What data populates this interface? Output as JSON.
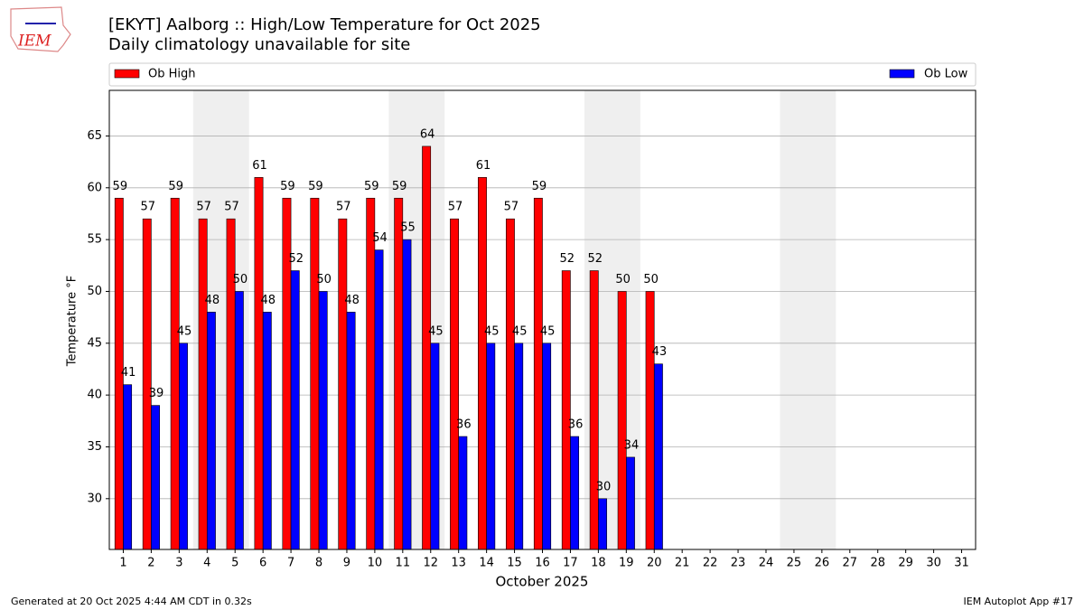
{
  "chart_data": {
    "type": "bar",
    "title": "[EKYT] Aalborg :: High/Low Temperature for Oct 2025",
    "subtitle": "Daily climatology unavailable for site",
    "y_label": "Temperature °F",
    "x_label": "October 2025",
    "categories": [
      1,
      2,
      3,
      4,
      5,
      6,
      7,
      8,
      9,
      10,
      11,
      12,
      13,
      14,
      15,
      16,
      17,
      18,
      19,
      20,
      21,
      22,
      23,
      24,
      25,
      26,
      27,
      28,
      29,
      30,
      31
    ],
    "series": [
      {
        "name": "Ob High",
        "color": "#ff0000",
        "values": [
          59,
          57,
          59,
          57,
          57,
          61,
          59,
          59,
          57,
          59,
          59,
          64,
          57,
          61,
          57,
          59,
          52,
          52,
          50,
          50,
          null,
          null,
          null,
          null,
          null,
          null,
          null,
          null,
          null,
          null,
          null
        ]
      },
      {
        "name": "Ob Low",
        "color": "#0000ff",
        "values": [
          41,
          39,
          45,
          48,
          50,
          48,
          52,
          50,
          48,
          54,
          55,
          45,
          36,
          45,
          45,
          45,
          36,
          30,
          34,
          43,
          null,
          null,
          null,
          null,
          null,
          null,
          null,
          null,
          null,
          null,
          null
        ]
      }
    ],
    "xlim": [
      0.5,
      31.5
    ],
    "ylim": [
      25.1,
      69.4
    ],
    "yticks": [
      30,
      35,
      40,
      45,
      50,
      55,
      60,
      65
    ],
    "grid": true,
    "legend": "top",
    "shaded_spans": [
      [
        3.5,
        5.5
      ],
      [
        10.5,
        12.5
      ],
      [
        17.5,
        19.5
      ],
      [
        24.5,
        26.5
      ]
    ],
    "logo": "IEM",
    "footer_left": "Generated at 20 Oct 2025 4:44 AM CDT in 0.32s",
    "footer_right": "IEM Autoplot App #17"
  }
}
